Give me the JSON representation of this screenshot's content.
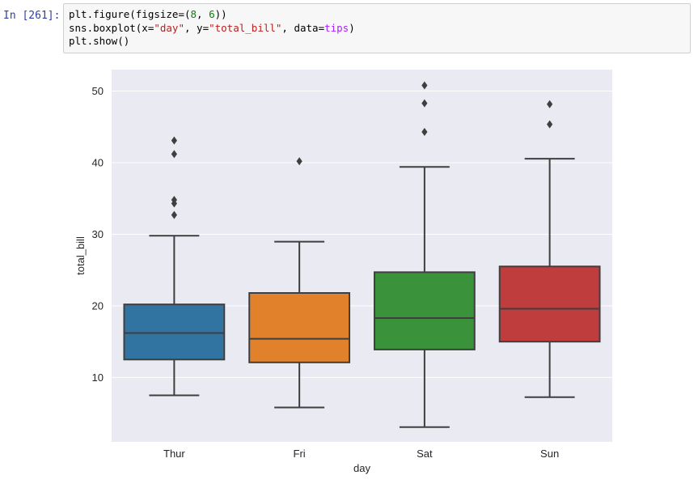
{
  "cell": {
    "prompt": "In [261]:",
    "code": [
      [
        {
          "t": "plt.figure(figsize=("
        },
        {
          "t": "8",
          "c": "num"
        },
        {
          "t": ", "
        },
        {
          "t": "6",
          "c": "num"
        },
        {
          "t": "))"
        }
      ],
      [
        {
          "t": "sns.boxplot(x="
        },
        {
          "t": "\"day\"",
          "c": "str"
        },
        {
          "t": ", y="
        },
        {
          "t": "\"total_bill\"",
          "c": "str"
        },
        {
          "t": ", data="
        },
        {
          "t": "tips",
          "c": "kw"
        },
        {
          "t": ")"
        }
      ],
      [
        {
          "t": "plt.show()"
        }
      ]
    ]
  },
  "chart_data": {
    "type": "boxplot",
    "xlabel": "day",
    "ylabel": "total_bill",
    "ylim": [
      1.0,
      53.0
    ],
    "yticks": [
      10,
      20,
      30,
      40,
      50
    ],
    "grid": true,
    "categories": [
      "Thur",
      "Fri",
      "Sat",
      "Sun"
    ],
    "colors": [
      "#3274a1",
      "#e1812c",
      "#3a923a",
      "#c03d3e"
    ],
    "background": "#eaeaf2",
    "boxes": [
      {
        "name": "Thur",
        "whisker_low": 7.5,
        "q1": 12.5,
        "median": 16.2,
        "q3": 20.2,
        "whisker_high": 29.8,
        "outliers": [
          32.7,
          34.3,
          34.8,
          41.2,
          43.1
        ]
      },
      {
        "name": "Fri",
        "whisker_low": 5.8,
        "q1": 12.1,
        "median": 15.4,
        "q3": 21.8,
        "whisker_high": 28.97,
        "outliers": [
          40.2
        ]
      },
      {
        "name": "Sat",
        "whisker_low": 3.07,
        "q1": 13.9,
        "median": 18.3,
        "q3": 24.7,
        "whisker_high": 39.4,
        "outliers": [
          44.3,
          48.3,
          50.8
        ]
      },
      {
        "name": "Sun",
        "whisker_low": 7.25,
        "q1": 15.0,
        "median": 19.6,
        "q3": 25.5,
        "whisker_high": 40.55,
        "outliers": [
          45.35,
          48.17
        ]
      }
    ]
  }
}
